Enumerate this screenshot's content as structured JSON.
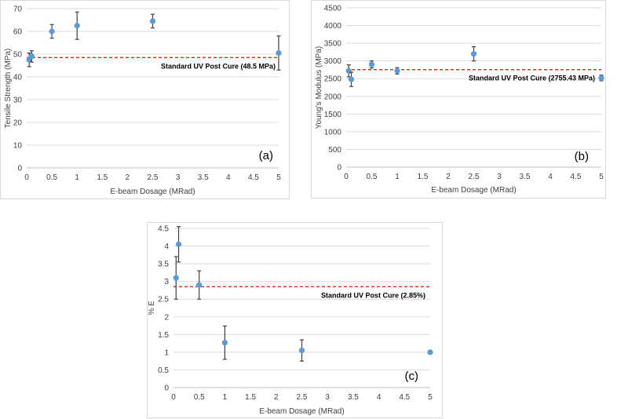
{
  "colors": {
    "marker": "#5B9BD5",
    "reference_line": "#E0301E",
    "gridline": "#d9d9d9",
    "error_bar": "#404040"
  },
  "chart_data": [
    {
      "type": "scatter",
      "panel_label": "(a)",
      "xlabel": "E-beam Dosage (MRad)",
      "ylabel": "Tensile Strength (MPa)",
      "xlim": [
        0,
        5
      ],
      "ylim": [
        0,
        70
      ],
      "x_ticks": [
        0,
        0.5,
        1,
        1.5,
        2,
        2.5,
        3,
        3.5,
        4,
        4.5,
        5
      ],
      "x_tick_labels": [
        "0",
        "0.5",
        "1",
        "1.5",
        "2",
        "2.5",
        "3",
        "3.5",
        "4",
        "4.5",
        "5"
      ],
      "y_ticks": [
        0,
        10,
        20,
        30,
        40,
        50,
        60,
        70
      ],
      "y_tick_labels": [
        "0",
        "10",
        "20",
        "30",
        "40",
        "50",
        "60",
        "70"
      ],
      "grid": "horizontal",
      "points": [
        {
          "x": 0.05,
          "y": 47.5,
          "err": 3
        },
        {
          "x": 0.1,
          "y": 49,
          "err": 2.5
        },
        {
          "x": 0.5,
          "y": 60,
          "err": 3
        },
        {
          "x": 1,
          "y": 62.5,
          "err": 6
        },
        {
          "x": 2.5,
          "y": 64.5,
          "err": 3
        },
        {
          "x": 5,
          "y": 50.5,
          "err": 7.5
        }
      ],
      "reference": {
        "value": 48.5,
        "label": "Standard UV Post Cure (48.5 MPa)"
      }
    },
    {
      "type": "scatter",
      "panel_label": "(b)",
      "xlabel": "E-beam Dosage (MRad)",
      "ylabel": "Young's Modulus (MPa)",
      "xlim": [
        0,
        5
      ],
      "ylim": [
        0,
        4500
      ],
      "x_ticks": [
        0,
        0.5,
        1,
        1.5,
        2,
        2.5,
        3,
        3.5,
        4,
        4.5,
        5
      ],
      "x_tick_labels": [
        "0",
        "0.5",
        "1",
        "1.5",
        "2",
        "2.5",
        "3",
        "3.5",
        "4",
        "4.5",
        "5"
      ],
      "y_ticks": [
        0,
        500,
        1000,
        1500,
        2000,
        2500,
        3000,
        3500,
        4000,
        4500
      ],
      "y_tick_labels": [
        "0",
        "500",
        "1000",
        "1500",
        "2000",
        "2500",
        "3000",
        "3500",
        "4000",
        "4500"
      ],
      "grid": "horizontal",
      "points": [
        {
          "x": 0.05,
          "y": 2720,
          "err": 170
        },
        {
          "x": 0.1,
          "y": 2480,
          "err": 200
        },
        {
          "x": 0.5,
          "y": 2900,
          "err": 100
        },
        {
          "x": 1,
          "y": 2720,
          "err": 90
        },
        {
          "x": 2.5,
          "y": 3200,
          "err": 200
        },
        {
          "x": 5,
          "y": 2520,
          "err": 80
        }
      ],
      "reference": {
        "value": 2755.43,
        "label": "Standard UV Post Cure (2755.43 MPa)"
      }
    },
    {
      "type": "scatter",
      "panel_label": "(c)",
      "xlabel": "E-beam Dosage (MRad)",
      "ylabel": "% E",
      "xlim": [
        0,
        5
      ],
      "ylim": [
        0,
        4.5
      ],
      "x_ticks": [
        0,
        0.5,
        1,
        1.5,
        2,
        2.5,
        3,
        3.5,
        4,
        4.5,
        5
      ],
      "x_tick_labels": [
        "0",
        "0.5",
        "1",
        "1.5",
        "2",
        "2.5",
        "3",
        "3.5",
        "4",
        "4.5",
        "5"
      ],
      "y_ticks": [
        0,
        0.5,
        1,
        1.5,
        2,
        2.5,
        3,
        3.5,
        4,
        4.5
      ],
      "y_tick_labels": [
        "0",
        "0.5",
        "1",
        "1.5",
        "2",
        "2.5",
        "3",
        "3.5",
        "4",
        "4.5"
      ],
      "grid": "horizontal",
      "points": [
        {
          "x": 0.05,
          "y": 3.1,
          "err": 0.6
        },
        {
          "x": 0.1,
          "y": 4.05,
          "err": 0.5
        },
        {
          "x": 0.5,
          "y": 2.9,
          "err": 0.4
        },
        {
          "x": 1,
          "y": 1.27,
          "err": 0.47
        },
        {
          "x": 2.5,
          "y": 1.05,
          "err": 0.3
        },
        {
          "x": 5,
          "y": 1.0,
          "err": 0.05
        }
      ],
      "reference": {
        "value": 2.85,
        "label": "Standard UV Post Cure (2.85%)"
      }
    }
  ]
}
